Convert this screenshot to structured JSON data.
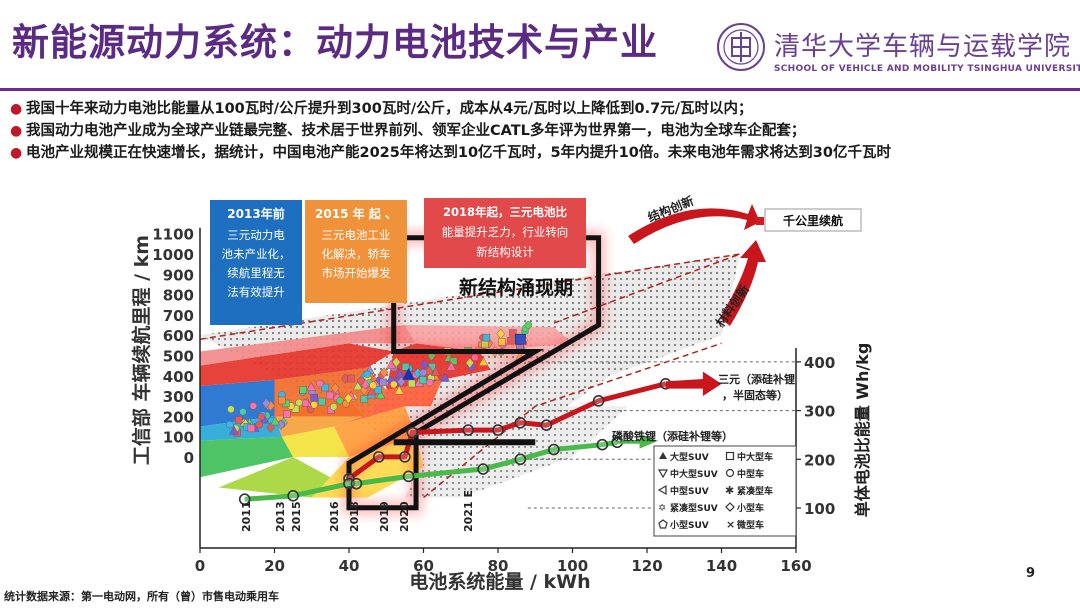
{
  "header": {
    "title": "新能源动力系统：动力电池技术与产业",
    "logo_cn": "清华大学车辆与运载学院",
    "logo_en": "SCHOOL OF VEHICLE AND MOBILITY TSINGHUA UNIVERSITY"
  },
  "bullets": [
    "我国十年来动力电池比能量从100瓦时/公斤提升到300瓦时/公斤，成本从4元/瓦时以上降低到0.7元/瓦时以内；",
    "我国动力电池产业成为全球产业链最完整、技术居于世界前列、领军企业CATL多年评为世界第一，电池为全球车企配套；",
    "电池产业规模正在快速增长，据统计，中国电池产能2025年将达到10亿千瓦时，5年内提升10倍。未来电池年需求将达到30亿千瓦时"
  ],
  "footer": {
    "source": "统计数据来源：第一电动网，所有（曾）市售电动乘用车",
    "page": "9"
  },
  "chart_data": {
    "type": "scatter",
    "xlabel": "电池系统能量 / kWh",
    "ylabel": "工信部 车辆续航里程 / km",
    "y2label": "单体电池比能量 Wh/kg",
    "xlim": [
      0,
      160
    ],
    "ylim": [
      -200,
      1100
    ],
    "y2lim": [
      0,
      450
    ],
    "x_ticks": [
      0,
      20,
      40,
      60,
      80,
      100,
      120,
      140,
      160
    ],
    "y_ticks": [
      0,
      100,
      200,
      300,
      400,
      500,
      600,
      700,
      800,
      900,
      1000,
      1100
    ],
    "y2_ticks": [
      100,
      200,
      300,
      400
    ],
    "grid": false,
    "year_labels": [
      {
        "text": "2011",
        "x": 24
      },
      {
        "text": "2013",
        "x": 40
      },
      {
        "text": "2015",
        "x": 45
      },
      {
        "text": "2016",
        "x": 67
      },
      {
        "text": "2018",
        "x": 74
      },
      {
        "text": "2019",
        "x": 82
      },
      {
        "text": "2020",
        "x": 86
      },
      {
        "text": "2021 E",
        "x": 111
      }
    ],
    "boxes": [
      {
        "lines": [
          "2013年前",
          "三元动力电",
          "池未产业化，",
          "续航里程无",
          "法有效提升"
        ],
        "color": "#1f6fc1"
      },
      {
        "lines": [
          "2015 年 起 、",
          "三元电池工业",
          "化解决，轿车",
          "市场开始爆发"
        ],
        "color": "#f0923a"
      },
      {
        "lines": [
          "2018年起，三元电池比",
          "能量提升乏力，行业转向",
          "新结构设计"
        ],
        "color": "#e2494a"
      }
    ],
    "annotations": {
      "new_structure": "新结构涌现期",
      "structure_innovation": "结构创新",
      "material_innovation": "材料创新",
      "target": "千公里续航",
      "ncm_line": [
        "三元（添硅补锂",
        "，半固态等）"
      ],
      "lfp_line": "磷酸铁锂（添硅补锂等）"
    },
    "series": [
      {
        "name": "三元",
        "axis": "y2",
        "x": [
          40,
          48,
          55,
          57,
          72,
          80,
          86,
          93,
          107,
          125
        ],
        "y": [
          160,
          205,
          205,
          255,
          260,
          260,
          275,
          270,
          320,
          355
        ]
      },
      {
        "name": "磷酸铁锂",
        "axis": "y2",
        "x": [
          12,
          25,
          40,
          42,
          56,
          76,
          86,
          95,
          108,
          112
        ],
        "y": [
          118,
          125,
          150,
          150,
          165,
          180,
          200,
          220,
          230,
          235
        ]
      }
    ],
    "legend": {
      "position": "bottom-right",
      "entries": [
        {
          "label": "大型SUV",
          "marker": "triangle-up"
        },
        {
          "label": "中大型车",
          "marker": "square"
        },
        {
          "label": "中大型SUV",
          "marker": "triangle-down"
        },
        {
          "label": "中型车",
          "marker": "circle"
        },
        {
          "label": "中型SUV",
          "marker": "triangle-left"
        },
        {
          "label": "紧凑型车",
          "marker": "star"
        },
        {
          "label": "紧凑型SUV",
          "marker": "hexagram"
        },
        {
          "label": "小型车",
          "marker": "diamond"
        },
        {
          "label": "小型SUV",
          "marker": "pentagon"
        },
        {
          "label": "微型车",
          "marker": "x"
        }
      ]
    }
  }
}
